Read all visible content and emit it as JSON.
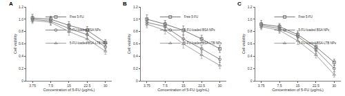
{
  "chart_data": [
    {
      "type": "line",
      "title": "A",
      "x_label": "Concentration of 5-FU (μg/mL)",
      "y_label": "Cell viability",
      "categories": [
        "3.75",
        "7.5",
        "15",
        "22.5",
        "30"
      ],
      "ylim": [
        0,
        1.2
      ],
      "yticks": [
        0,
        0.2,
        0.4,
        0.6,
        0.8,
        {
          "value": 1,
          "label": "1.0"
        },
        1.2
      ],
      "legend": "upper right",
      "series": [
        {
          "name": "Free 5-FU",
          "color": "#555555",
          "marker": "square",
          "line_style": "solid",
          "values": [
            1.02,
            1.0,
            0.9,
            0.82,
            0.62
          ],
          "error": [
            0.06,
            0.05,
            0.06,
            0.06,
            0.05
          ]
        },
        {
          "name": "5-FU-loaded BSA NPs",
          "color": "#666666",
          "marker": "circle",
          "line_style": "solid",
          "values": [
            1.0,
            0.97,
            0.85,
            0.75,
            0.55
          ],
          "error": [
            0.05,
            0.06,
            0.07,
            0.06,
            0.05
          ]
        },
        {
          "name": "5-FU-loaded BSA-LTB NPs",
          "color": "#888888",
          "marker": "triangle",
          "line_style": "solid",
          "values": [
            0.98,
            0.95,
            0.8,
            0.68,
            0.48
          ],
          "error": [
            0.05,
            0.05,
            0.06,
            0.07,
            0.05
          ]
        }
      ]
    },
    {
      "type": "line",
      "title": "B",
      "x_label": "Concentration of 5-FU (μg/mL)",
      "y_label": "Cell viability",
      "categories": [
        "3.75",
        "7.5",
        "15",
        "22.5",
        "30"
      ],
      "ylim": [
        0,
        1.2
      ],
      "yticks": [
        0,
        0.2,
        0.4,
        0.6,
        0.8,
        {
          "value": 1,
          "label": "1.0"
        },
        1.2
      ],
      "legend": "upper right",
      "series": [
        {
          "name": "Free 5-FU",
          "color": "#555555",
          "marker": "square",
          "line_style": "solid",
          "values": [
            1.0,
            0.92,
            0.82,
            0.68,
            0.52
          ],
          "error": [
            0.07,
            0.06,
            0.07,
            0.06,
            0.06
          ]
        },
        {
          "name": "5-FU-loaded BSA NPs",
          "color": "#666666",
          "marker": "circle",
          "line_style": "solid",
          "values": [
            0.95,
            0.88,
            0.68,
            0.52,
            0.35
          ],
          "error": [
            0.06,
            0.07,
            0.06,
            0.06,
            0.05
          ]
        },
        {
          "name": "5-FU-loaded BSA-LTB NPs",
          "color": "#888888",
          "marker": "triangle",
          "line_style": "solid",
          "values": [
            0.92,
            0.82,
            0.6,
            0.42,
            0.25
          ],
          "error": [
            0.06,
            0.06,
            0.07,
            0.06,
            0.05
          ]
        }
      ]
    },
    {
      "type": "line",
      "title": "C",
      "x_label": "Concentration of 5-FU (μg/mL)",
      "y_label": "Cell viability",
      "categories": [
        "3.75",
        "7.5",
        "15",
        "22.5",
        "30"
      ],
      "ylim": [
        0,
        1.2
      ],
      "yticks": [
        0,
        0.2,
        0.4,
        0.6,
        0.8,
        {
          "value": 1,
          "label": "1.0"
        },
        1.2
      ],
      "legend": "upper right",
      "series": [
        {
          "name": "Free 5-FU",
          "color": "#555555",
          "marker": "square",
          "line_style": "solid",
          "values": [
            0.92,
            0.88,
            0.75,
            0.55,
            0.3
          ],
          "error": [
            0.06,
            0.05,
            0.06,
            0.06,
            0.05
          ]
        },
        {
          "name": "5-FU-loaded BSA NPs",
          "color": "#666666",
          "marker": "circle",
          "line_style": "solid",
          "values": [
            0.9,
            0.85,
            0.72,
            0.5,
            0.2
          ],
          "error": [
            0.05,
            0.06,
            0.06,
            0.06,
            0.05
          ]
        },
        {
          "name": "5-FU-loaded BSA-LTB NPs",
          "color": "#888888",
          "marker": "triangle",
          "line_style": "solid",
          "values": [
            0.88,
            0.82,
            0.65,
            0.42,
            0.1
          ],
          "error": [
            0.05,
            0.05,
            0.06,
            0.05,
            0.04
          ]
        }
      ]
    }
  ]
}
